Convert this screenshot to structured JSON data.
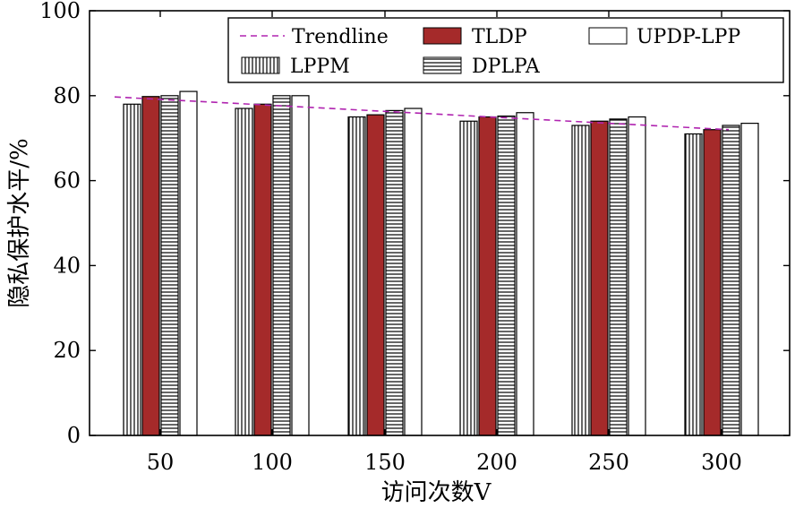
{
  "chart_data": {
    "type": "bar",
    "xlabel": "访问次数V",
    "ylabel": "隐私保护水平/%",
    "ylim": [
      0,
      100
    ],
    "yticks": [
      "0",
      "20",
      "40",
      "60",
      "80",
      "100"
    ],
    "categories": [
      "50",
      "100",
      "150",
      "200",
      "250",
      "300"
    ],
    "series": [
      {
        "name": "LPPM",
        "values": [
          78,
          77,
          75,
          74,
          73,
          71
        ],
        "pattern": "vertical-lines",
        "color": "#ffffff"
      },
      {
        "name": "TLDP",
        "values": [
          79.8,
          78,
          75.5,
          75,
          74,
          72
        ],
        "pattern": "solid",
        "color": "#a52a2a"
      },
      {
        "name": "DPLPA",
        "values": [
          80,
          80,
          76.5,
          75.2,
          74.5,
          73
        ],
        "pattern": "horizontal-lines",
        "color": "#ffffff"
      },
      {
        "name": "UPDP-LPP",
        "values": [
          81,
          80,
          77,
          76,
          75,
          73.5
        ],
        "pattern": "solid",
        "color": "#ffffff"
      }
    ],
    "trendline": {
      "name": "Trendline",
      "start": 79.7,
      "end": 72,
      "color": "#b024b0",
      "style": "dashed"
    },
    "legend": {
      "position": "top-right",
      "order": [
        "Trendline",
        "TLDP",
        "UPDP-LPP",
        "LPPM",
        "DPLPA"
      ]
    },
    "grid": false
  }
}
